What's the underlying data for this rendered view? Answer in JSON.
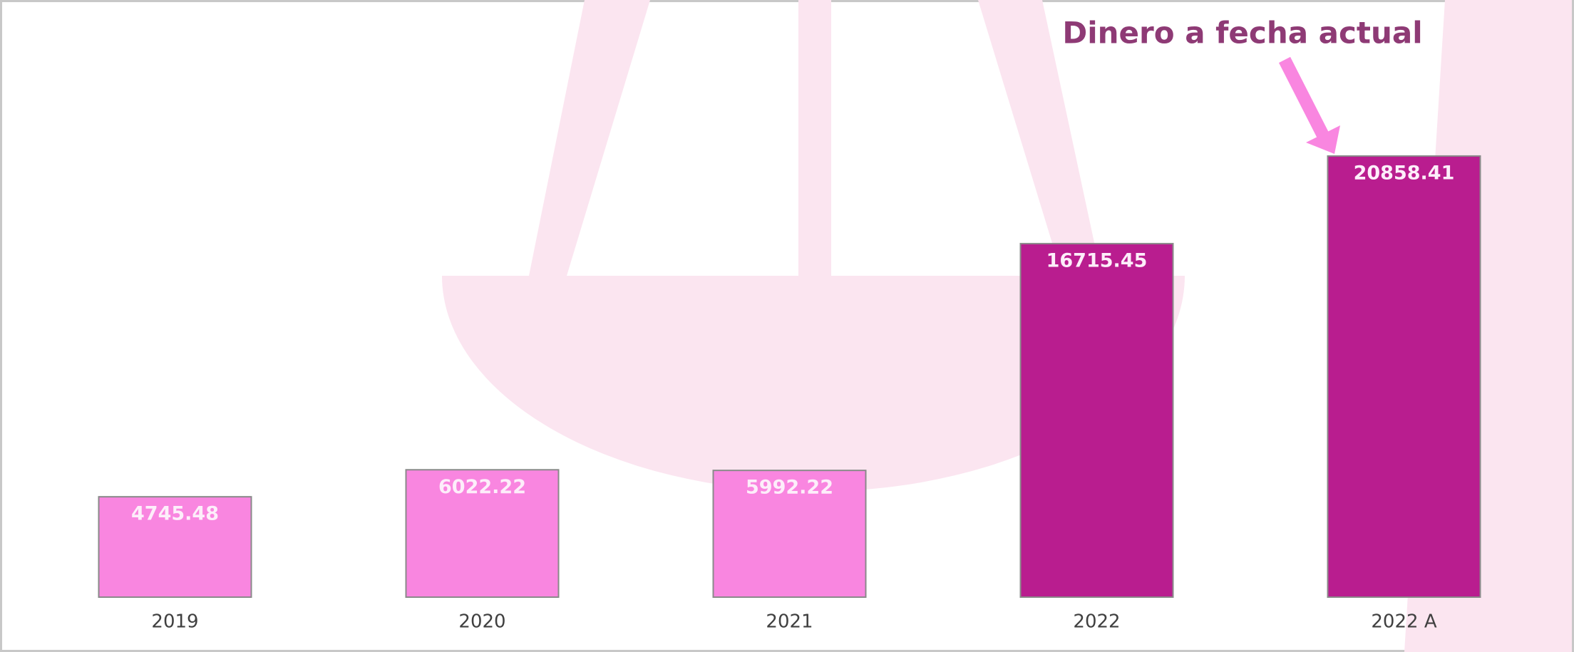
{
  "chart_data": {
    "type": "bar",
    "annotation": "Dinero a fecha actual",
    "categories": [
      "2019",
      "2020",
      "2021",
      "2022",
      "2022 A"
    ],
    "values": [
      4745.48,
      6022.22,
      5992.22,
      16715.45,
      20858.41
    ],
    "colors": [
      "#f986e0",
      "#f986e0",
      "#f986e0",
      "#b91d8f",
      "#b91d8f"
    ]
  }
}
